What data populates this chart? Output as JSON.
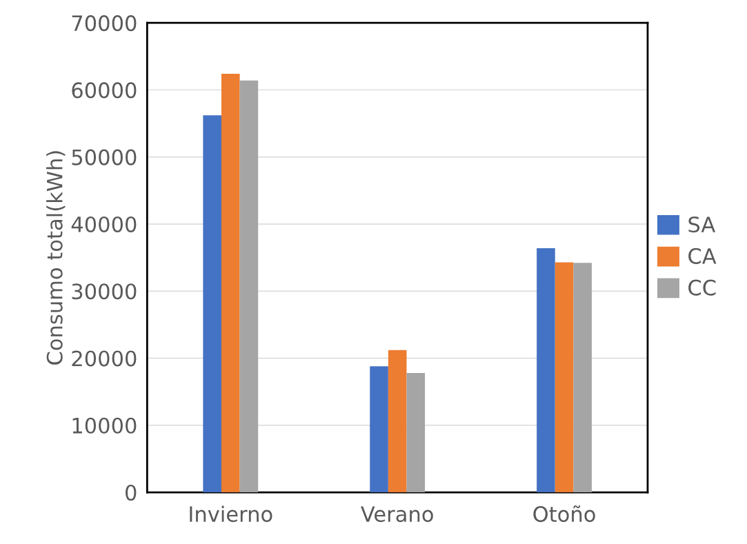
{
  "chart_data": {
    "type": "bar",
    "ylabel": "Consumo total(kWh)",
    "categories": [
      "Invierno",
      "Verano",
      "Otoño"
    ],
    "series": [
      {
        "name": "SA",
        "color": "#4472c4",
        "values": [
          56200,
          18800,
          36400
        ]
      },
      {
        "name": "CA",
        "color": "#ed7d31",
        "values": [
          62400,
          21200,
          34300
        ]
      },
      {
        "name": "CC",
        "color": "#a5a5a5",
        "values": [
          61400,
          17800,
          34200
        ]
      }
    ],
    "ylim": [
      0,
      70000
    ],
    "yticks": [
      0,
      10000,
      20000,
      30000,
      40000,
      50000,
      60000,
      70000
    ],
    "grid": "y",
    "legend": "right"
  }
}
